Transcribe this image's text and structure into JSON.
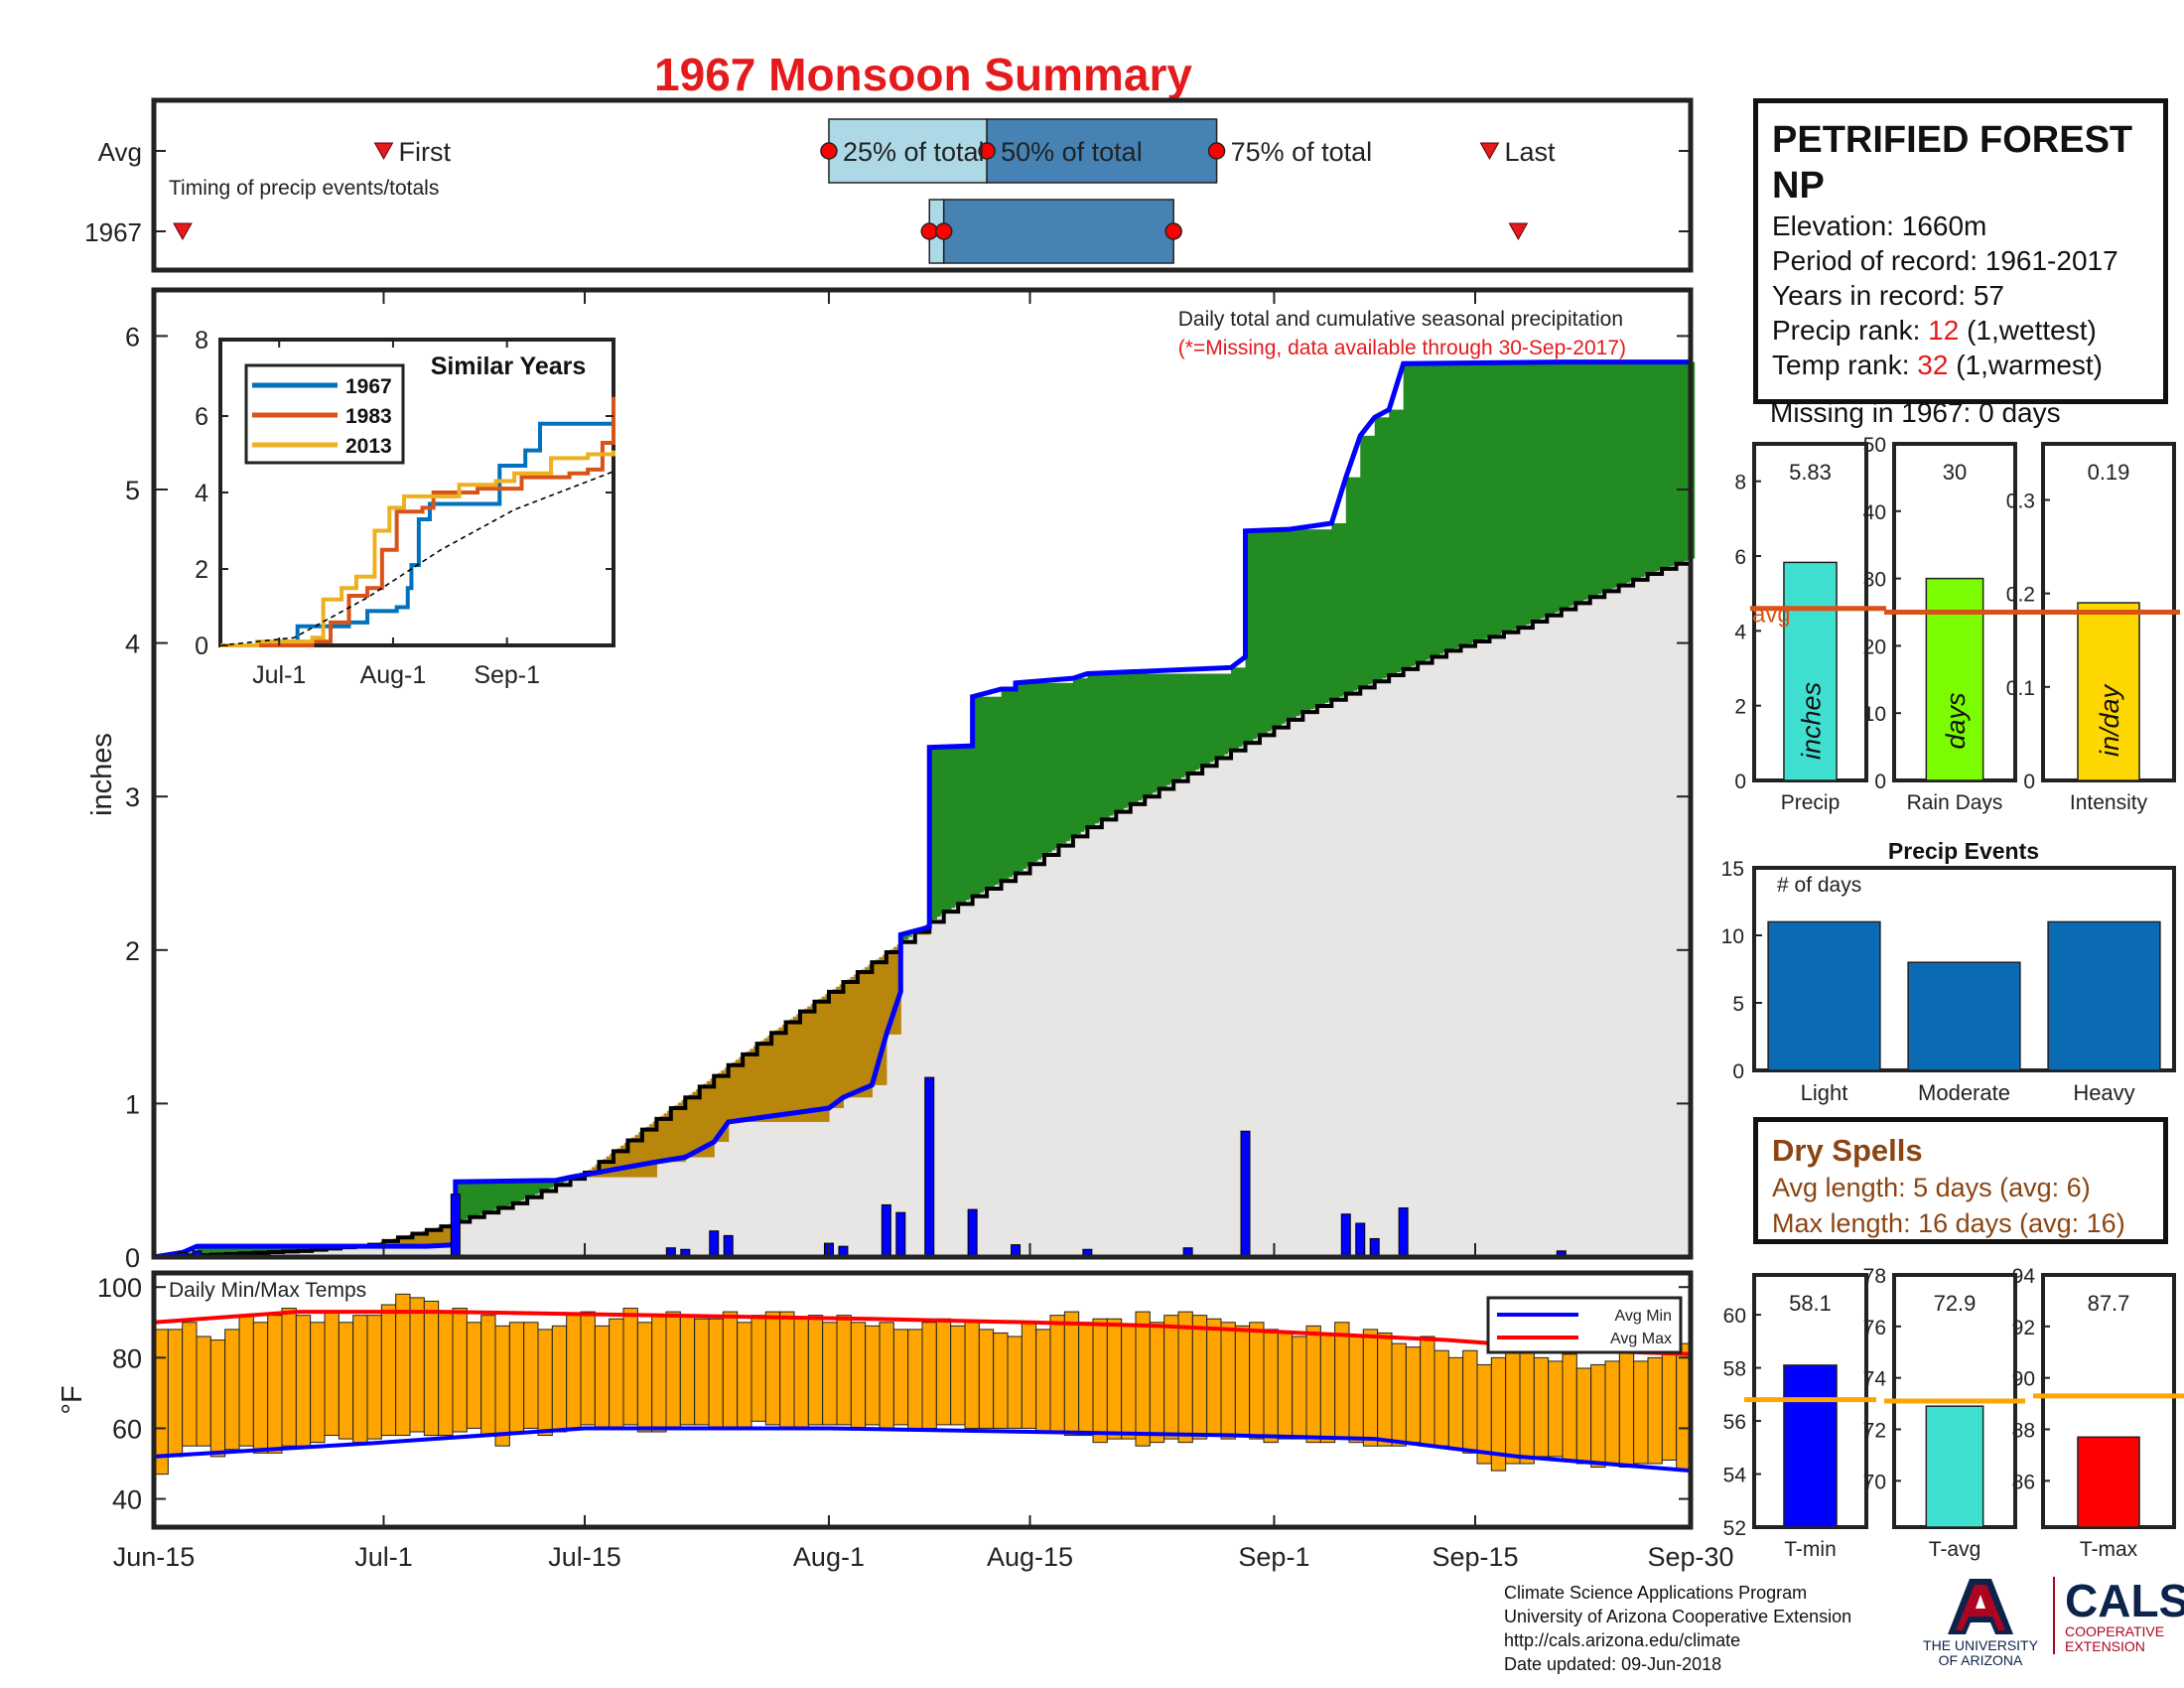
{
  "title": "1967 Monsoon Summary",
  "timing": {
    "row_labels": [
      "Avg",
      "1967"
    ],
    "note": "Timing of precip events/totals",
    "labels": [
      "First",
      "25% of total",
      "50% of total",
      "75% of total",
      "Last"
    ],
    "avg_days": {
      "first": 16,
      "p25": 47,
      "p50": 58,
      "p75": 74,
      "last": 93
    },
    "year_days": {
      "first": 2,
      "p25": 54,
      "p50": 55,
      "p75": 71,
      "last": 95
    }
  },
  "station": {
    "name": "PETRIFIED FOREST NP",
    "elevation": "Elevation: 1660m",
    "period": "Period of record: 1961-2017",
    "years": "Years in record: 57",
    "precip_rank_prefix": "Precip rank: ",
    "precip_rank": "12",
    "precip_rank_suffix": " (1,wettest)",
    "temp_rank_prefix": "Temp rank: ",
    "temp_rank": "32",
    "temp_rank_suffix": " (1,warmest)",
    "missing": "Missing in 1967: 0 days"
  },
  "dry_spells": {
    "title": "Dry Spells",
    "avg": "Avg length: 5 days (avg: 6)",
    "max": "Max length: 16 days (avg: 16)"
  },
  "footer": [
    "Climate Science Applications Program",
    "University of Arizona Cooperative Extension",
    "http://cals.arizona.edu/climate",
    " Date updated: 09-Jun-2018"
  ],
  "logos": {
    "ua_line1": "THE UNIVERSITY",
    "ua_line2": "OF ARIZONA",
    "cals": "CALS",
    "cals_line1": "COOPERATIVE",
    "cals_line2": "EXTENSION"
  },
  "colors": {
    "title": "#e41a1c",
    "cumulative_line": "#0000ff",
    "above_avg_fill": "#228B22",
    "below_avg_fill": "#B8860B",
    "avg_fill": "#e8e6e4",
    "daily_bars": "#0000ff",
    "temp_bars": "#FFA500",
    "avg_min": "#0000ff",
    "avg_max": "#ff0000",
    "bar_blue": "#0a6ab3"
  },
  "chart_data": [
    {
      "id": "main",
      "type": "area",
      "title": "Daily total and cumulative seasonal precipitation",
      "subtitle": "(*=Missing, data available through 30-Sep-2017)",
      "ylabel": "inches",
      "ylim": [
        0,
        6.3
      ],
      "yticks": [
        0,
        1,
        2,
        3,
        4,
        5,
        6
      ],
      "xlim": [
        0,
        107
      ],
      "xtick_labels": [
        "Jun-15",
        "Jul-1",
        "Jul-15",
        "Aug-1",
        "Aug-15",
        "Sep-1",
        "Sep-15",
        "Sep-30"
      ],
      "xtick_days": [
        0,
        16,
        30,
        47,
        61,
        78,
        92,
        107
      ],
      "cumulative_1967": [
        [
          0,
          0
        ],
        [
          2,
          0.03
        ],
        [
          3,
          0.07
        ],
        [
          19,
          0.07
        ],
        [
          21,
          0.08
        ],
        [
          21,
          0.49
        ],
        [
          28,
          0.5
        ],
        [
          29,
          0.52
        ],
        [
          35,
          0.62
        ],
        [
          37,
          0.65
        ],
        [
          39,
          0.75
        ],
        [
          40,
          0.88
        ],
        [
          47,
          0.97
        ],
        [
          48,
          1.04
        ],
        [
          50,
          1.12
        ],
        [
          51,
          1.45
        ],
        [
          52,
          1.73
        ],
        [
          52,
          2.1
        ],
        [
          54,
          2.15
        ],
        [
          54,
          3.32
        ],
        [
          57,
          3.33
        ],
        [
          57,
          3.65
        ],
        [
          59,
          3.7
        ],
        [
          60,
          3.7
        ],
        [
          60,
          3.74
        ],
        [
          64,
          3.77
        ],
        [
          65,
          3.8
        ],
        [
          75,
          3.84
        ],
        [
          76,
          3.91
        ],
        [
          76,
          4.73
        ],
        [
          79,
          4.74
        ],
        [
          82,
          4.78
        ],
        [
          83,
          5.08
        ],
        [
          84,
          5.35
        ],
        [
          85,
          5.47
        ],
        [
          86,
          5.52
        ],
        [
          87,
          5.82
        ],
        [
          98,
          5.83
        ],
        [
          107,
          5.83
        ]
      ],
      "average_cumulative": [
        [
          0,
          0
        ],
        [
          5,
          0.02
        ],
        [
          10,
          0.04
        ],
        [
          15,
          0.08
        ],
        [
          20,
          0.2
        ],
        [
          25,
          0.35
        ],
        [
          30,
          0.55
        ],
        [
          35,
          0.9
        ],
        [
          40,
          1.25
        ],
        [
          45,
          1.6
        ],
        [
          50,
          1.92
        ],
        [
          55,
          2.25
        ],
        [
          60,
          2.5
        ],
        [
          65,
          2.8
        ],
        [
          70,
          3.05
        ],
        [
          75,
          3.3
        ],
        [
          80,
          3.55
        ],
        [
          85,
          3.75
        ],
        [
          90,
          3.95
        ],
        [
          95,
          4.1
        ],
        [
          100,
          4.3
        ],
        [
          104,
          4.45
        ],
        [
          107,
          4.55
        ]
      ],
      "daily_precip": [
        [
          2,
          0.03
        ],
        [
          3,
          0.04
        ],
        [
          21,
          0.41
        ],
        [
          36,
          0.06
        ],
        [
          37,
          0.05
        ],
        [
          39,
          0.17
        ],
        [
          40,
          0.14
        ],
        [
          47,
          0.09
        ],
        [
          48,
          0.07
        ],
        [
          51,
          0.34
        ],
        [
          52,
          0.29
        ],
        [
          54,
          1.17
        ],
        [
          57,
          0.31
        ],
        [
          60,
          0.08
        ],
        [
          65,
          0.05
        ],
        [
          72,
          0.06
        ],
        [
          76,
          0.82
        ],
        [
          83,
          0.28
        ],
        [
          84,
          0.22
        ],
        [
          85,
          0.12
        ],
        [
          87,
          0.32
        ],
        [
          98,
          0.04
        ]
      ]
    },
    {
      "id": "similar_years",
      "type": "line",
      "title": "Similar Years",
      "ylim": [
        0,
        8
      ],
      "yticks": [
        0,
        2,
        4,
        6,
        8
      ],
      "xtick_labels": [
        "Jul-1",
        "Aug-1",
        "Sep-1"
      ],
      "xtick_days": [
        16,
        47,
        78
      ],
      "xlim": [
        0,
        107
      ],
      "series": [
        {
          "name": "1967",
          "color": "#0072BD",
          "points": [
            [
              0,
              0
            ],
            [
              20,
              0.1
            ],
            [
              21,
              0.5
            ],
            [
              35,
              0.6
            ],
            [
              40,
              0.9
            ],
            [
              48,
              1.0
            ],
            [
              51,
              1.5
            ],
            [
              52,
              2.1
            ],
            [
              54,
              3.3
            ],
            [
              57,
              3.7
            ],
            [
              76,
              4.7
            ],
            [
              83,
              5.1
            ],
            [
              87,
              5.8
            ],
            [
              100,
              5.8
            ],
            [
              107,
              5.8
            ]
          ]
        },
        {
          "name": "1983",
          "color": "#D95319",
          "points": [
            [
              0,
              0
            ],
            [
              25,
              0.1
            ],
            [
              30,
              0.6
            ],
            [
              35,
              1.3
            ],
            [
              40,
              1.5
            ],
            [
              44,
              2.5
            ],
            [
              48,
              3.5
            ],
            [
              55,
              3.6
            ],
            [
              58,
              4.0
            ],
            [
              70,
              4.1
            ],
            [
              82,
              4.4
            ],
            [
              95,
              4.5
            ],
            [
              100,
              4.6
            ],
            [
              104,
              5.3
            ],
            [
              107,
              6.5
            ]
          ]
        },
        {
          "name": "2013",
          "color": "#EDB120",
          "points": [
            [
              0,
              0
            ],
            [
              10,
              0.1
            ],
            [
              25,
              0.2
            ],
            [
              28,
              1.2
            ],
            [
              33,
              1.5
            ],
            [
              37,
              1.8
            ],
            [
              42,
              3.0
            ],
            [
              46,
              3.6
            ],
            [
              50,
              3.9
            ],
            [
              60,
              3.9
            ],
            [
              65,
              4.2
            ],
            [
              75,
              4.3
            ],
            [
              80,
              4.5
            ],
            [
              90,
              4.9
            ],
            [
              100,
              5.0
            ],
            [
              107,
              5.1
            ]
          ]
        },
        {
          "name": "avg",
          "color": "#000000",
          "dashed": true,
          "points": [
            [
              0,
              0
            ],
            [
              20,
              0.2
            ],
            [
              40,
              1.25
            ],
            [
              60,
              2.5
            ],
            [
              80,
              3.55
            ],
            [
              107,
              4.55
            ]
          ]
        }
      ]
    },
    {
      "id": "temps",
      "type": "bar",
      "title": "Daily Min/Max Temps",
      "ylabel": "°F",
      "ylim": [
        32,
        104
      ],
      "yticks": [
        40,
        60,
        80,
        100
      ],
      "legend": [
        "Avg Min",
        "Avg Max"
      ],
      "legend_position": "top-right",
      "daily_min": [
        47,
        52,
        55,
        55,
        52,
        54,
        55,
        53,
        53,
        55,
        55,
        56,
        58,
        57,
        56,
        57,
        58,
        58,
        59,
        58,
        58,
        59,
        60,
        58,
        55,
        59,
        60,
        58,
        59,
        60,
        61,
        60,
        60,
        61,
        59,
        59,
        60,
        61,
        61,
        60,
        60,
        60,
        62,
        61,
        60,
        60,
        61,
        61,
        61,
        60,
        61,
        60,
        61,
        60,
        60,
        61,
        61,
        60,
        60,
        60,
        60,
        60,
        59,
        59,
        58,
        58,
        56,
        57,
        57,
        55,
        56,
        57,
        56,
        57,
        58,
        57,
        58,
        57,
        56,
        57,
        57,
        56,
        56,
        57,
        56,
        55,
        55,
        55,
        56,
        55,
        55,
        54,
        53,
        50,
        48,
        50,
        50,
        52,
        52,
        51,
        50,
        49,
        50,
        49,
        50,
        50,
        51,
        48
      ],
      "daily_max": [
        88,
        88,
        90,
        86,
        85,
        88,
        92,
        90,
        92,
        94,
        92,
        90,
        93,
        90,
        92,
        92,
        95,
        98,
        97,
        96,
        93,
        94,
        90,
        92,
        89,
        90,
        90,
        88,
        89,
        92,
        93,
        89,
        91,
        94,
        90,
        92,
        93,
        92,
        91,
        91,
        93,
        90,
        92,
        93,
        93,
        91,
        92,
        90,
        92,
        90,
        89,
        90,
        88,
        88,
        90,
        91,
        89,
        90,
        88,
        87,
        86,
        90,
        88,
        92,
        93,
        90,
        91,
        91,
        89,
        93,
        90,
        92,
        93,
        92,
        91,
        90,
        89,
        90,
        88,
        87,
        86,
        89,
        87,
        90,
        86,
        88,
        87,
        84,
        83,
        86,
        82,
        80,
        82,
        78,
        80,
        84,
        82,
        80,
        79,
        81,
        77,
        78,
        79,
        82,
        79,
        80,
        81,
        84
      ],
      "avg_min": [
        [
          0,
          52
        ],
        [
          16,
          56
        ],
        [
          30,
          60
        ],
        [
          47,
          60
        ],
        [
          61,
          59
        ],
        [
          75,
          58
        ],
        [
          85,
          57
        ],
        [
          95,
          52
        ],
        [
          107,
          48
        ]
      ],
      "avg_max": [
        [
          0,
          90
        ],
        [
          10,
          93
        ],
        [
          20,
          93
        ],
        [
          35,
          92
        ],
        [
          50,
          91
        ],
        [
          61,
          90
        ],
        [
          70,
          89
        ],
        [
          80,
          87
        ],
        [
          90,
          85
        ],
        [
          100,
          82
        ],
        [
          107,
          81
        ]
      ]
    },
    {
      "id": "precip_bar",
      "type": "bar",
      "categories": [
        "Precip"
      ],
      "values": [
        5.83
      ],
      "value_label": "5.83",
      "inner_label": "inches",
      "avg": 4.6,
      "avg_label": "avg",
      "ylim": [
        0,
        9
      ],
      "yticks": [
        0,
        2,
        4,
        6,
        8
      ],
      "color": "#40E0D0"
    },
    {
      "id": "raindays_bar",
      "type": "bar",
      "categories": [
        "Rain Days"
      ],
      "values": [
        30
      ],
      "value_label": "30",
      "inner_label": "days",
      "avg": 25,
      "ylim": [
        0,
        50
      ],
      "yticks": [
        0,
        10,
        20,
        30,
        40,
        50
      ],
      "color": "#7CFC00"
    },
    {
      "id": "intensity_bar",
      "type": "bar",
      "categories": [
        "Intensity"
      ],
      "values": [
        0.19
      ],
      "value_label": "0.19",
      "inner_label": "in/day",
      "avg": 0.18,
      "ylim": [
        0,
        0.36
      ],
      "yticks": [
        0,
        0.1,
        0.2,
        0.3
      ],
      "color": "#FFD700"
    },
    {
      "id": "events",
      "type": "bar",
      "title": "Precip Events",
      "annotation": "# of days",
      "categories": [
        "Light",
        "Moderate",
        "Heavy"
      ],
      "values": [
        11,
        8,
        11
      ],
      "ylim": [
        0,
        15
      ],
      "yticks": [
        0,
        5,
        10,
        15
      ],
      "color": "#0a6ab3"
    },
    {
      "id": "tmin_bar",
      "type": "bar",
      "categories": [
        "T-min"
      ],
      "values": [
        58.1
      ],
      "value_label": "58.1",
      "avg": 56.8,
      "ylim": [
        52,
        61.5
      ],
      "yticks": [
        52,
        54,
        56,
        58,
        60
      ],
      "color": "#0000ff"
    },
    {
      "id": "tavg_bar",
      "type": "bar",
      "categories": [
        "T-avg"
      ],
      "values": [
        72.9
      ],
      "value_label": "72.9",
      "avg": 73.1,
      "ylim": [
        68.2,
        78
      ],
      "yticks": [
        70,
        72,
        74,
        76,
        78
      ],
      "color": "#40E0D0"
    },
    {
      "id": "tmax_bar",
      "type": "bar",
      "categories": [
        "T-max"
      ],
      "values": [
        87.7
      ],
      "value_label": "87.7",
      "avg": 89.3,
      "ylim": [
        84.2,
        94
      ],
      "yticks": [
        86,
        88,
        90,
        92,
        94
      ],
      "color": "#ff0000"
    }
  ]
}
